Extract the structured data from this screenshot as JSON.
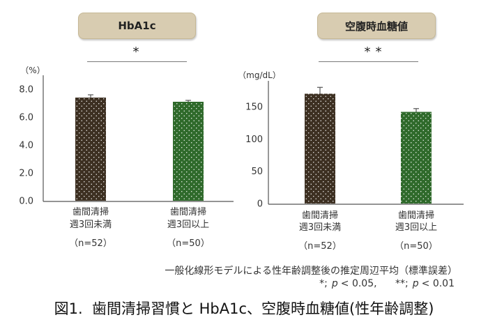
{
  "chart_data": [
    {
      "type": "bar",
      "title": "HbA1c",
      "significance": "*",
      "ylabel": "（%）",
      "xlabel": "",
      "ylim": [
        0,
        9
      ],
      "yticks": [
        0,
        2,
        4,
        6,
        8
      ],
      "ytick_labels": [
        "0.0",
        "2.0",
        "4.0",
        "6.0",
        "8.0"
      ],
      "categories": [
        [
          "歯間清掃",
          "週3回未満"
        ],
        [
          "歯間清掃",
          "週3回以上"
        ]
      ],
      "n_labels": [
        "（n=52）",
        "（n=50）"
      ],
      "values": [
        7.4,
        7.1
      ],
      "errors": [
        0.2,
        0.1
      ],
      "bar_colors": [
        "#3d3022",
        "#2f6a2b"
      ],
      "bar_pattern": "white-dots",
      "grid": false
    },
    {
      "type": "bar",
      "title": "空腹時血糖値",
      "significance": "**",
      "ylabel": "（mg/dL）",
      "xlabel": "",
      "ylim": [
        0,
        190
      ],
      "yticks": [
        0,
        50,
        100,
        150
      ],
      "ytick_labels": [
        "0",
        "50",
        "100",
        "150"
      ],
      "categories": [
        [
          "歯間清掃",
          "週3回未満"
        ],
        [
          "歯間清掃",
          "週3回以上"
        ]
      ],
      "n_labels": [
        "（n=52）",
        "（n=50）"
      ],
      "values": [
        170,
        142
      ],
      "errors": [
        10,
        5
      ],
      "bar_colors": [
        "#3d3022",
        "#2f6a2b"
      ],
      "bar_pattern": "white-dots",
      "grid": false
    }
  ],
  "footnote": {
    "method": "一般化線形モデルによる性年齢調整後の推定周辺平均（標準誤差）",
    "significance_legend": [
      {
        "mark": "*;",
        "p": "p",
        "threshold": "< 0.05,"
      },
      {
        "mark": "**;",
        "p": "p",
        "threshold": "< 0.01"
      }
    ]
  },
  "caption": "図1.  歯間清掃習慣と HbA1c、空腹時血糖値(性年齢調整)",
  "colors": {
    "header_bg": "#d8ccb1",
    "axis": "#555555",
    "text": "#333333"
  }
}
